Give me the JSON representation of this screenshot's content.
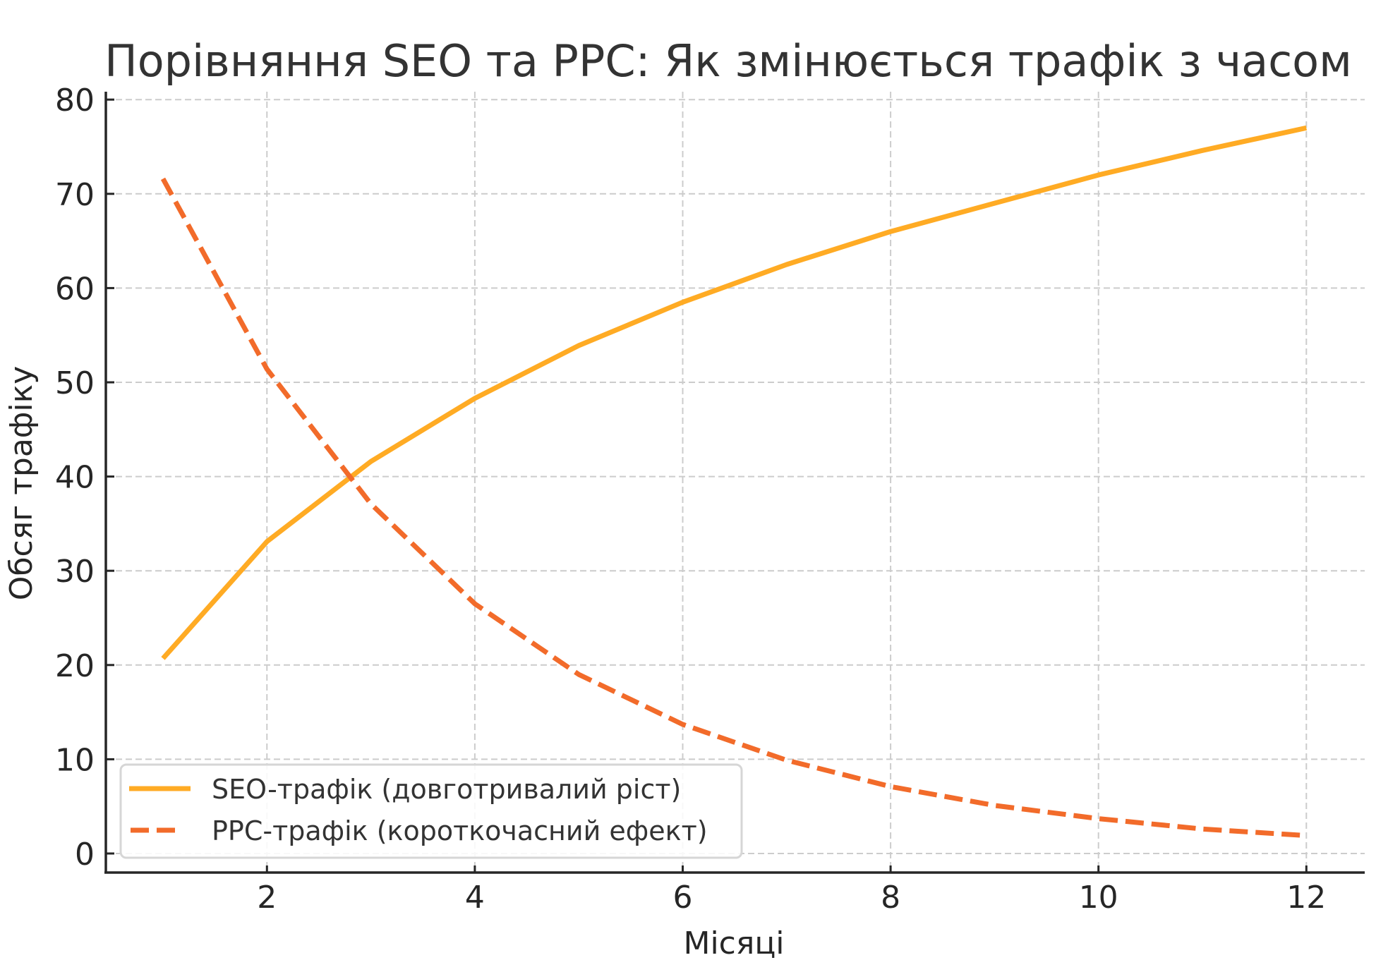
{
  "chart_data": {
    "type": "line",
    "title": "Порівняння SEO та PPC: Як змінюється трафік з часом",
    "xlabel": "Місяці",
    "ylabel": "Обсяг трафіку",
    "x": [
      1,
      2,
      3,
      4,
      5,
      6,
      7,
      8,
      9,
      10,
      11,
      12
    ],
    "xlim": [
      0.45,
      12.55
    ],
    "ylim": [
      -1.9,
      81
    ],
    "xticks": [
      2,
      4,
      6,
      8,
      10,
      12
    ],
    "yticks": [
      0,
      10,
      20,
      30,
      40,
      50,
      60,
      70,
      80
    ],
    "grid": true,
    "legend_position": "lower left",
    "series": [
      {
        "name": "SEO-трафік (довготривалий ріст)",
        "style": "solid",
        "color": "#FFAB24",
        "values": [
          20.7,
          33.1,
          41.6,
          48.3,
          53.9,
          58.5,
          62.5,
          66.0,
          69.0,
          72.0,
          74.6,
          77.0
        ]
      },
      {
        "name": "PPC-трафік (короткочасний ефект)",
        "style": "dashed",
        "color": "#F26B2A",
        "values": [
          71.6,
          51.4,
          37.1,
          26.5,
          19.0,
          13.7,
          9.9,
          7.1,
          5.1,
          3.7,
          2.6,
          1.9
        ]
      }
    ]
  }
}
